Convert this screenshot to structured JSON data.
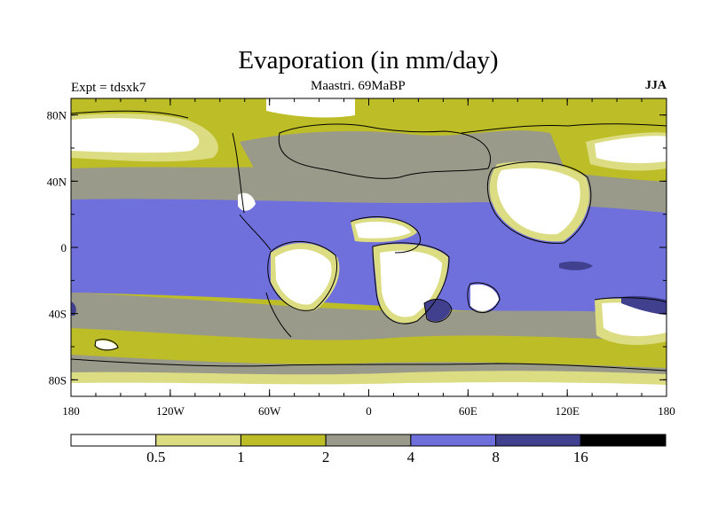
{
  "title": "Evaporation (in mm/day)",
  "subtitle_left": "Expt = tdsxk7",
  "subtitle_center": "Maastri.  69MaBP",
  "subtitle_right": "JJA",
  "x_ticks": [
    {
      "lon": -180,
      "label": "180"
    },
    {
      "lon": -120,
      "label": "120W"
    },
    {
      "lon": -60,
      "label": "60W"
    },
    {
      "lon": 0,
      "label": "0"
    },
    {
      "lon": 60,
      "label": "60E"
    },
    {
      "lon": 120,
      "label": "120E"
    },
    {
      "lon": 180,
      "label": "180"
    }
  ],
  "y_ticks": [
    {
      "lat": 80,
      "label": "80N"
    },
    {
      "lat": 40,
      "label": "40N"
    },
    {
      "lat": 0,
      "label": "0"
    },
    {
      "lat": -40,
      "label": "40S"
    },
    {
      "lat": -80,
      "label": "80S"
    }
  ],
  "colorbar": {
    "levels": [
      "0.5",
      "1",
      "2",
      "4",
      "8",
      "16"
    ],
    "colors": [
      "#ffffff",
      "#dcdc82",
      "#bdbd28",
      "#9a9a8a",
      "#7070dd",
      "#40408f",
      "#000000"
    ]
  },
  "colors": {
    "white": "#ffffff",
    "pale_yellow": "#dcdc82",
    "olive": "#bdbd28",
    "gray": "#9a9a8a",
    "blue": "#7070dd",
    "dark_blue": "#40408f"
  }
}
